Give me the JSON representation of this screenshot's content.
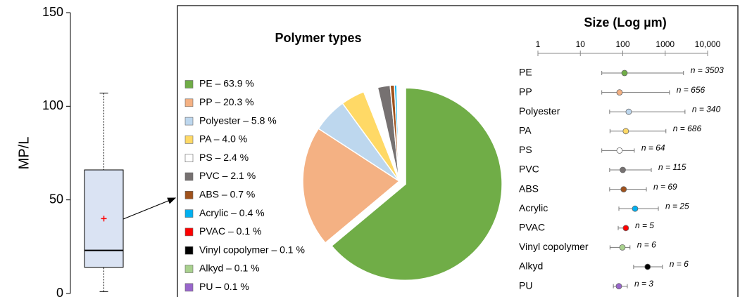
{
  "chart_data": [
    {
      "type": "box",
      "ylabel": "MP/L",
      "ylim": [
        0,
        150
      ],
      "yticks": [
        0,
        50,
        100,
        150
      ],
      "whisker_low": 1,
      "q1": 14,
      "median": 23,
      "q3": 66,
      "whisker_high": 107,
      "mean": 40,
      "color": "#dae3f3",
      "mean_color": "#ff0000"
    },
    {
      "type": "pie",
      "title": "Polymer types",
      "values": [
        63.9,
        20.3,
        5.8,
        4.0,
        2.4,
        2.1,
        0.7,
        0.4,
        0.1,
        0.1,
        0.1,
        0.1
      ],
      "value_labels": [
        "PE – 63.9 %",
        "PP – 20.3 %",
        "Polyester – 5.8 %",
        "PA – 4.0 %",
        "PS – 2.4 %",
        "PVC – 2.1 %",
        "ABS – 0.7 %",
        "Acrylic – 0.4 %",
        "PVAC – 0.1 %",
        "Vinyl copolymer – 0.1 %",
        "Alkyd – 0.1 %",
        "PU – 0.1 %"
      ],
      "colors": [
        "#70ad47",
        "#f4b183",
        "#bdd7ee",
        "#ffd966",
        "#ffffff",
        "#767171",
        "#a0521c",
        "#00b0f0",
        "#ff0000",
        "#000000",
        "#a9d18e",
        "#9966cc"
      ]
    },
    {
      "type": "range",
      "title": "Size (Log µm)",
      "log": true,
      "xlim": [
        1,
        10000
      ],
      "xticks": [
        1,
        10,
        100,
        1000,
        {
          "value": 10000,
          "label": "10,000"
        }
      ],
      "categories": [
        "PE",
        "PP",
        "Polyester",
        "PA",
        "PS",
        "PVC",
        "ABS",
        "Acrylic",
        "PVAC",
        "Vinyl copolymer",
        "Alkyd",
        "PU"
      ],
      "values": [
        110,
        84,
        138,
        118,
        84,
        100,
        105,
        195,
        118,
        98,
        385,
        81
      ],
      "low": [
        32,
        32,
        49,
        50,
        32,
        49,
        49,
        81,
        78,
        50,
        180,
        60
      ],
      "high": [
        2700,
        1260,
        2930,
        1040,
        187,
        470,
        360,
        690,
        133,
        148,
        860,
        128
      ],
      "n_labels": [
        "n = 3503",
        "n = 656",
        "n = 340",
        "n = 686",
        "n = 64",
        "n = 115",
        "n = 69",
        "n = 25",
        "n = 5",
        "n = 6",
        "n = 6",
        "n = 3"
      ],
      "colors": [
        "#70ad47",
        "#f4b183",
        "#bdd7ee",
        "#ffd966",
        "#ffffff",
        "#767171",
        "#a0521c",
        "#00b0f0",
        "#ff0000",
        "#a9d18e",
        "#000000",
        "#9966cc"
      ]
    }
  ]
}
